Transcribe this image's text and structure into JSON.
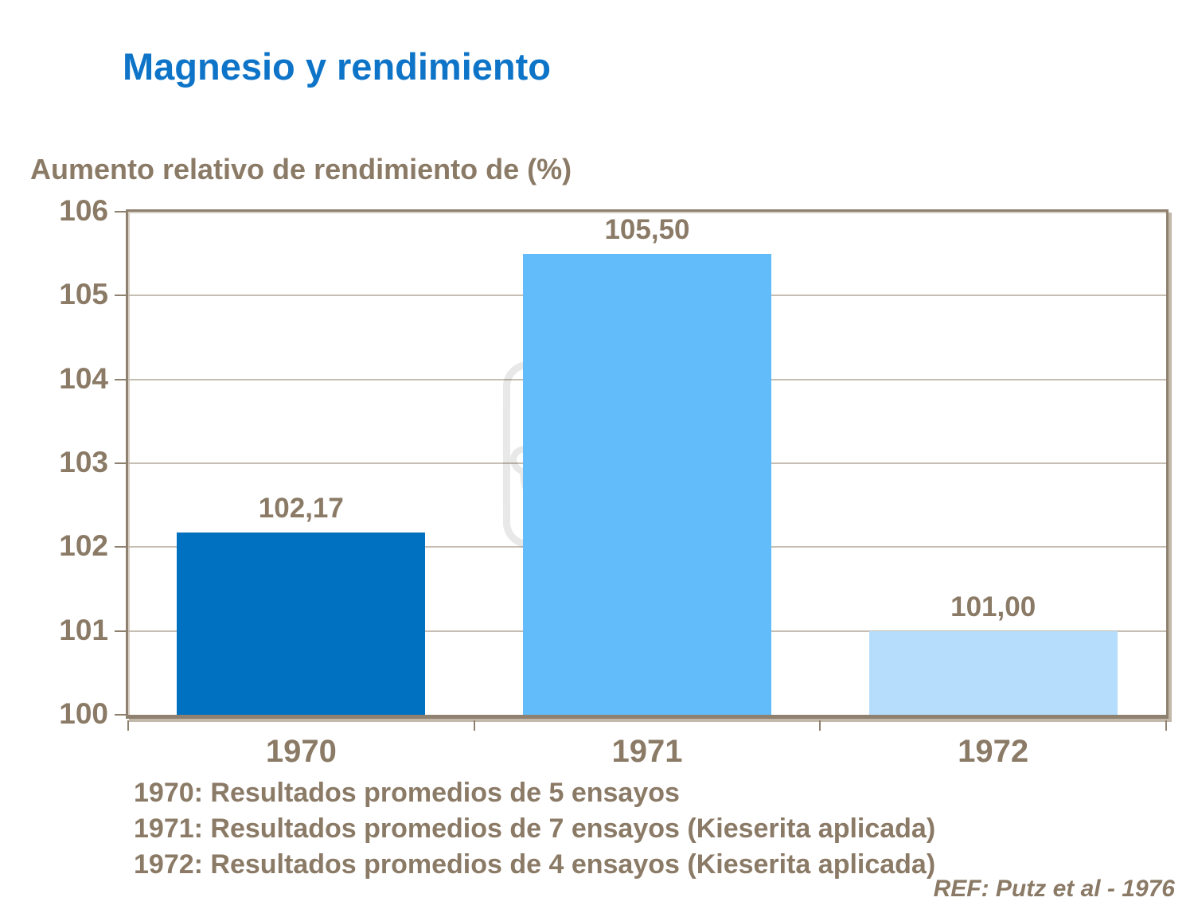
{
  "slide": {
    "title": "Magnesio y rendimiento",
    "axis_title": "Aumento relativo de rendimiento de (%)",
    "footnotes": [
      "1970: Resultados promedios de 5 ensayos",
      "1971: Resultados promedios de 7 ensayos (Kieserita aplicada)",
      "1972: Resultados promedios de 4 ensayos (Kieserita aplicada)"
    ],
    "reference": "REF: Putz et al - 1976",
    "watermark_icon": "yara-viking-ship-logo"
  },
  "colors": {
    "title_blue": "#0E74C8",
    "text_brown": "#8A7A66",
    "frame": "#8F8170",
    "frame_shadow": "#C3B9AB",
    "gridline": "#C6BEB2",
    "bar_1970": "#0070C0",
    "bar_1971": "#63BCFA",
    "bar_1972": "#B6DDFC"
  },
  "chart_data": {
    "type": "bar",
    "categories": [
      "1970",
      "1971",
      "1972"
    ],
    "values": [
      102.17,
      105.5,
      101.0
    ],
    "value_labels": [
      "102,17",
      "105,50",
      "101,00"
    ],
    "bar_colors": [
      "#0070C0",
      "#63BCFA",
      "#B6DDFC"
    ],
    "title": "",
    "xlabel": "",
    "ylabel": "Aumento relativo de rendimiento de (%)",
    "ylim": [
      100,
      106
    ],
    "yticks": [
      100,
      101,
      102,
      103,
      104,
      105,
      106
    ],
    "grid": true,
    "legend": false
  }
}
